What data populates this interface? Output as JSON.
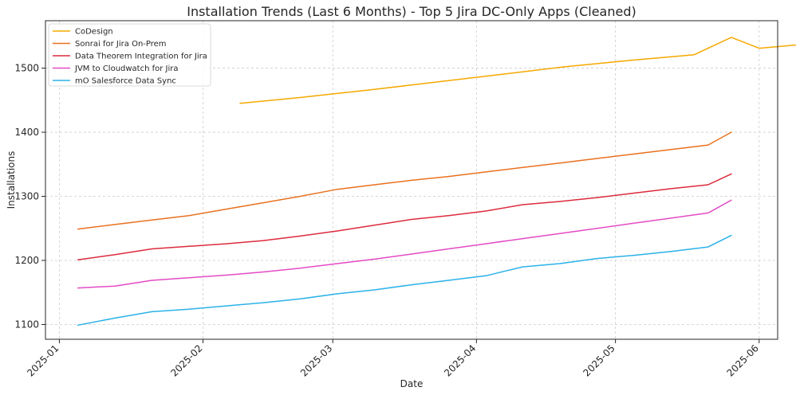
{
  "chart_data": {
    "type": "line",
    "title": "Installation Trends (Last 6 Months) - Top 5 Jira DC-Only Apps (Cleaned)",
    "xlabel": "Date",
    "ylabel": "Installations",
    "xlim": [
      "2024-12-29",
      "2025-06-05"
    ],
    "ylim": [
      1077,
      1574
    ],
    "x_ticks": [
      "2025-01",
      "2025-02",
      "2025-03",
      "2025-04",
      "2025-05",
      "2025-06"
    ],
    "y_ticks": [
      1100,
      1200,
      1300,
      1400,
      1500
    ],
    "grid": true,
    "legend_position": "top-left",
    "series": [
      {
        "name": "CoDesign",
        "color": "#f5a800",
        "points": [
          [
            "2025-02-09",
            1445
          ],
          [
            "2025-02-23",
            1455
          ],
          [
            "2025-03-09",
            1466
          ],
          [
            "2025-03-23",
            1478
          ],
          [
            "2025-04-06",
            1490
          ],
          [
            "2025-04-20",
            1502
          ],
          [
            "2025-05-04",
            1512
          ],
          [
            "2025-05-18",
            1521
          ],
          [
            "2025-06-01",
            1531
          ],
          [
            "2025-06-15",
            1540
          ],
          [
            "2025-05-26",
            1548
          ]
        ]
      },
      {
        "name": "Sonrai for Jira On-Prem",
        "color": "#e8711f",
        "points": [
          [
            "2025-01-05",
            1249
          ],
          [
            "2025-01-13",
            1256
          ],
          [
            "2025-01-21",
            1263
          ],
          [
            "2025-01-29",
            1270
          ],
          [
            "2025-02-06",
            1280
          ],
          [
            "2025-02-14",
            1290
          ],
          [
            "2025-02-22",
            1300
          ],
          [
            "2025-03-02",
            1311
          ],
          [
            "2025-03-10",
            1318
          ],
          [
            "2025-03-18",
            1325
          ],
          [
            "2025-03-26",
            1331
          ],
          [
            "2025-04-03",
            1338
          ],
          [
            "2025-04-11",
            1345
          ],
          [
            "2025-04-19",
            1352
          ],
          [
            "2025-04-27",
            1359
          ],
          [
            "2025-05-05",
            1366
          ],
          [
            "2025-05-13",
            1373
          ],
          [
            "2025-05-21",
            1380
          ],
          [
            "2025-05-26",
            1400
          ]
        ]
      },
      {
        "name": "Data Theorem Integration for Jira",
        "color": "#dc2b3d",
        "points": [
          [
            "2025-01-05",
            1201
          ],
          [
            "2025-01-13",
            1209
          ],
          [
            "2025-01-21",
            1218
          ],
          [
            "2025-01-29",
            1222
          ],
          [
            "2025-02-06",
            1226
          ],
          [
            "2025-02-14",
            1231
          ],
          [
            "2025-02-22",
            1238
          ],
          [
            "2025-03-02",
            1246
          ],
          [
            "2025-03-10",
            1255
          ],
          [
            "2025-03-18",
            1264
          ],
          [
            "2025-03-26",
            1270
          ],
          [
            "2025-04-03",
            1277
          ],
          [
            "2025-04-11",
            1287
          ],
          [
            "2025-04-19",
            1292
          ],
          [
            "2025-04-27",
            1298
          ],
          [
            "2025-05-05",
            1305
          ],
          [
            "2025-05-13",
            1312
          ],
          [
            "2025-05-21",
            1318
          ],
          [
            "2025-05-26",
            1335
          ]
        ]
      },
      {
        "name": "JVM to Cloudwatch for Jira",
        "color": "#e34bc6",
        "points": [
          [
            "2025-01-05",
            1157
          ],
          [
            "2025-01-13",
            1160
          ],
          [
            "2025-01-21",
            1169
          ],
          [
            "2025-01-29",
            1173
          ],
          [
            "2025-02-06",
            1177
          ],
          [
            "2025-02-14",
            1182
          ],
          [
            "2025-02-22",
            1188
          ],
          [
            "2025-03-02",
            1195
          ],
          [
            "2025-03-10",
            1202
          ],
          [
            "2025-03-18",
            1210
          ],
          [
            "2025-03-26",
            1218
          ],
          [
            "2025-04-03",
            1226
          ],
          [
            "2025-04-11",
            1234
          ],
          [
            "2025-04-19",
            1242
          ],
          [
            "2025-04-27",
            1250
          ],
          [
            "2025-05-05",
            1258
          ],
          [
            "2025-05-13",
            1266
          ],
          [
            "2025-05-21",
            1274
          ],
          [
            "2025-05-26",
            1294
          ]
        ]
      },
      {
        "name": "mO Salesforce Data Sync",
        "color": "#2bb2e8",
        "points": [
          [
            "2025-01-05",
            1099
          ],
          [
            "2025-01-13",
            1110
          ],
          [
            "2025-01-21",
            1120
          ],
          [
            "2025-01-29",
            1124
          ],
          [
            "2025-02-06",
            1129
          ],
          [
            "2025-02-14",
            1134
          ],
          [
            "2025-02-22",
            1140
          ],
          [
            "2025-03-02",
            1148
          ],
          [
            "2025-03-10",
            1154
          ],
          [
            "2025-03-18",
            1162
          ],
          [
            "2025-03-26",
            1169
          ],
          [
            "2025-04-03",
            1176
          ],
          [
            "2025-04-11",
            1190
          ],
          [
            "2025-04-19",
            1195
          ],
          [
            "2025-04-27",
            1203
          ],
          [
            "2025-05-05",
            1208
          ],
          [
            "2025-05-13",
            1214
          ],
          [
            "2025-05-21",
            1221
          ],
          [
            "2025-05-26",
            1239
          ]
        ]
      }
    ]
  }
}
